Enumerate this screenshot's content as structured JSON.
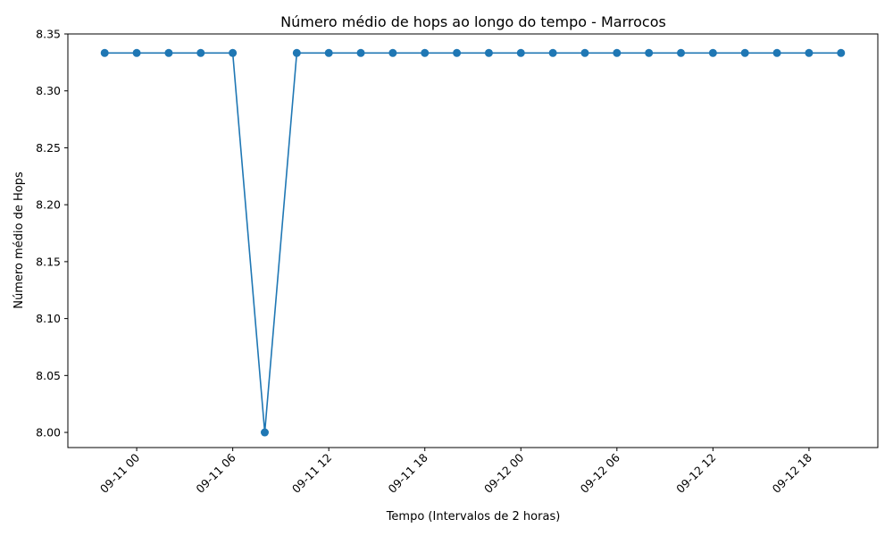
{
  "chart_data": {
    "type": "line",
    "title": "Número médio de hops ao longo do tempo - Marrocos",
    "xlabel": "Tempo (Intervalos de 2 horas)",
    "ylabel": "Número médio de Hops",
    "x_tick_labels": [
      "09-11 00",
      "09-11 06",
      "09-11 12",
      "09-11 18",
      "09-12 00",
      "09-12 06",
      "09-12 12",
      "09-12 18"
    ],
    "y_tick_labels": [
      "8.00",
      "8.05",
      "8.10",
      "8.15",
      "8.20",
      "8.25",
      "8.30",
      "8.35"
    ],
    "ylim": [
      7.9867,
      8.35
    ],
    "grid": false,
    "color": "#1f77b4",
    "marker": "circle",
    "series": [
      {
        "x": [
          "09-10 22:00",
          "09-11 00:00",
          "09-11 02:00",
          "09-11 04:00",
          "09-11 06:00",
          "09-11 08:00",
          "09-11 10:00",
          "09-11 12:00",
          "09-11 14:00",
          "09-11 16:00",
          "09-11 18:00",
          "09-11 20:00",
          "09-11 22:00",
          "09-12 00:00",
          "09-12 02:00",
          "09-12 04:00",
          "09-12 06:00",
          "09-12 08:00",
          "09-12 10:00",
          "09-12 12:00",
          "09-12 14:00",
          "09-12 16:00",
          "09-12 18:00",
          "09-12 20:00"
        ],
        "values": [
          8.3333,
          8.3333,
          8.3333,
          8.3333,
          8.3333,
          8.0,
          8.3333,
          8.3333,
          8.3333,
          8.3333,
          8.3333,
          8.3333,
          8.3333,
          8.3333,
          8.3333,
          8.3333,
          8.3333,
          8.3333,
          8.3333,
          8.3333,
          8.3333,
          8.3333,
          8.3333,
          8.3333
        ]
      }
    ]
  }
}
